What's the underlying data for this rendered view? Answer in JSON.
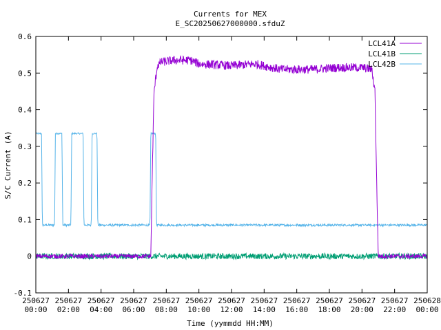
{
  "chart_data": {
    "type": "line",
    "title": "Currents for MEX",
    "subtitle": "E_SC20250627000000.sfduZ",
    "xlabel": "Time (yymmdd HH:MM)",
    "ylabel": "S/C Current (A)",
    "xlim_hours": [
      0,
      24
    ],
    "ylim": [
      -0.1,
      0.6
    ],
    "grid": false,
    "legend_position": "top-right",
    "y_ticks": [
      -0.1,
      0,
      0.1,
      0.2,
      0.3,
      0.4,
      0.5,
      0.6
    ],
    "y_tick_labels": [
      "-0.1",
      "0",
      "0.1",
      "0.2",
      "0.3",
      "0.4",
      "0.5",
      "0.6"
    ],
    "x_ticks": [
      {
        "hours": 0,
        "date": "250627",
        "time": "00:00"
      },
      {
        "hours": 2,
        "date": "250627",
        "time": "02:00"
      },
      {
        "hours": 4,
        "date": "250627",
        "time": "04:00"
      },
      {
        "hours": 6,
        "date": "250627",
        "time": "06:00"
      },
      {
        "hours": 8,
        "date": "250627",
        "time": "08:00"
      },
      {
        "hours": 10,
        "date": "250627",
        "time": "10:00"
      },
      {
        "hours": 12,
        "date": "250627",
        "time": "12:00"
      },
      {
        "hours": 14,
        "date": "250627",
        "time": "14:00"
      },
      {
        "hours": 16,
        "date": "250627",
        "time": "16:00"
      },
      {
        "hours": 18,
        "date": "250627",
        "time": "18:00"
      },
      {
        "hours": 20,
        "date": "250627",
        "time": "20:00"
      },
      {
        "hours": 22,
        "date": "250627",
        "time": "22:00"
      },
      {
        "hours": 24,
        "date": "250628",
        "time": "00:00"
      }
    ],
    "series": [
      {
        "name": "LCL41A",
        "color": "#9400d3",
        "points": [
          [
            0,
            0.0
          ],
          [
            7.05,
            0.0
          ],
          [
            7.15,
            0.25
          ],
          [
            7.25,
            0.45
          ],
          [
            7.45,
            0.52
          ],
          [
            7.7,
            0.53
          ],
          [
            8.5,
            0.535
          ],
          [
            9.5,
            0.535
          ],
          [
            10.0,
            0.525
          ],
          [
            12.0,
            0.52
          ],
          [
            13.5,
            0.525
          ],
          [
            15.0,
            0.51
          ],
          [
            16.0,
            0.51
          ],
          [
            17.0,
            0.51
          ],
          [
            18.5,
            0.515
          ],
          [
            20.0,
            0.515
          ],
          [
            20.6,
            0.51
          ],
          [
            20.8,
            0.45
          ],
          [
            20.9,
            0.2
          ],
          [
            21.0,
            0.0
          ],
          [
            24,
            0.0
          ]
        ]
      },
      {
        "name": "LCL41B",
        "color": "#009e73",
        "points": [
          [
            0,
            0.0
          ],
          [
            24,
            0.0
          ]
        ]
      },
      {
        "name": "LCL42B",
        "color": "#56b4e9",
        "points": [
          [
            0,
            0.335
          ],
          [
            0.35,
            0.335
          ],
          [
            0.4,
            0.085
          ],
          [
            1.15,
            0.085
          ],
          [
            1.2,
            0.335
          ],
          [
            1.6,
            0.335
          ],
          [
            1.65,
            0.085
          ],
          [
            2.15,
            0.085
          ],
          [
            2.2,
            0.335
          ],
          [
            2.9,
            0.335
          ],
          [
            2.95,
            0.085
          ],
          [
            3.4,
            0.085
          ],
          [
            3.45,
            0.335
          ],
          [
            3.75,
            0.335
          ],
          [
            3.8,
            0.085
          ],
          [
            7.0,
            0.085
          ],
          [
            7.05,
            0.335
          ],
          [
            7.35,
            0.335
          ],
          [
            7.4,
            0.085
          ],
          [
            24,
            0.085
          ]
        ]
      }
    ]
  }
}
